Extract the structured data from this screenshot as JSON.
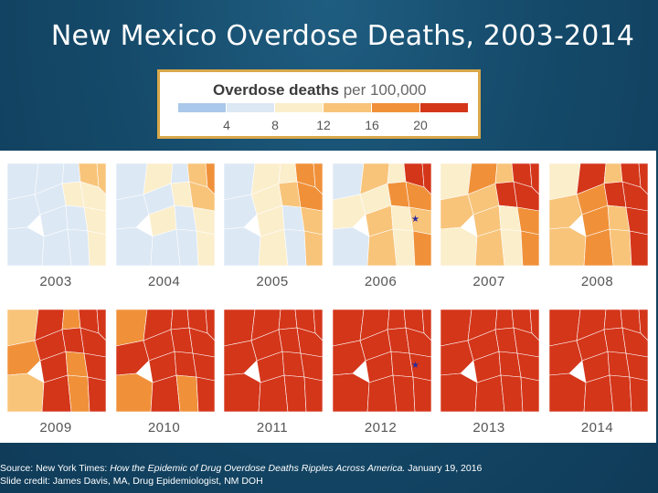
{
  "title": "New Mexico Overdose Deaths, 2003-2014",
  "legend": {
    "title": "Overdose deaths",
    "unit": "per 100,000",
    "ticks": [
      "4",
      "8",
      "12",
      "16",
      "20"
    ],
    "colors": [
      "#a9c8ea",
      "#dce8f4",
      "#fbeecb",
      "#f8c47a",
      "#f0913a",
      "#d4361a"
    ]
  },
  "maps": [
    {
      "year": "2003",
      "level": 0.05
    },
    {
      "year": "2004",
      "level": 0.12
    },
    {
      "year": "2005",
      "level": 0.22
    },
    {
      "year": "2006",
      "level": 0.32,
      "marker": true
    },
    {
      "year": "2007",
      "level": 0.4
    },
    {
      "year": "2008",
      "level": 0.5
    },
    {
      "year": "2009",
      "level": 0.62
    },
    {
      "year": "2010",
      "level": 0.72
    },
    {
      "year": "2011",
      "level": 0.8
    },
    {
      "year": "2012",
      "level": 0.88,
      "marker": true
    },
    {
      "year": "2013",
      "level": 0.94
    },
    {
      "year": "2014",
      "level": 0.98
    }
  ],
  "footer": {
    "source_prefix": "Source: New York Times: ",
    "source_title": "How the Epidemic of Drug Overdose Deaths Ripples Across America.",
    "source_date": " January 19, 2016",
    "credit": "Slide credit: James Davis, MA, Drug Epidemiologist, NM DOH"
  }
}
